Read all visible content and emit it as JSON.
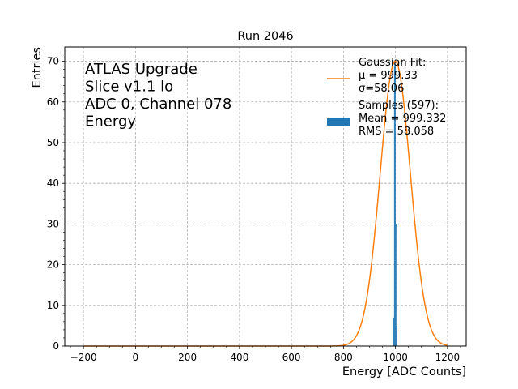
{
  "chart_data": {
    "type": "bar",
    "title": "Run 2046",
    "xlabel": "Energy [ADC Counts]",
    "ylabel": "Entries",
    "xlim": [
      -272,
      1272
    ],
    "ylim": [
      0,
      73.5
    ],
    "xticks": [
      -200,
      0,
      200,
      400,
      600,
      800,
      1000,
      1200
    ],
    "xtick_labels": [
      "−200",
      "0",
      "200",
      "400",
      "600",
      "800",
      "1000",
      "1200"
    ],
    "yticks": [
      0,
      10,
      20,
      30,
      40,
      50,
      60,
      70
    ],
    "ytick_labels": [
      "0",
      "10",
      "20",
      "30",
      "40",
      "50",
      "60",
      "70"
    ],
    "x_minor_step": 50,
    "y_minor_step": 2,
    "grid": true,
    "annotation": [
      "ATLAS Upgrade",
      "Slice v1.1 lo",
      "ADC 0, Channel 078",
      "Energy"
    ],
    "histogram": {
      "name": "Samples (597)",
      "color": "#1f77b4",
      "bin_width": 3,
      "bins": [
        {
          "x": 993,
          "count": 7
        },
        {
          "x": 996,
          "count": 69
        },
        {
          "x": 999,
          "count": 69
        },
        {
          "x": 1002,
          "count": 30
        },
        {
          "x": 1005,
          "count": 5
        }
      ]
    },
    "fit": {
      "name": "Gaussian Fit",
      "color": "#ff7f0e",
      "mu": 999.33,
      "sigma": 58.06,
      "amplitude": 70,
      "x_range": [
        -200,
        1200
      ]
    },
    "legend": {
      "placement": "top-right",
      "entries": [
        {
          "type": "line",
          "color": "#ff7f0e",
          "lines": [
            "Gaussian Fit:",
            " μ = 999.33",
            " σ=58.06"
          ]
        },
        {
          "type": "patch",
          "color": "#1f77b4",
          "lines": [
            "Samples (597):",
            " Mean = 999.332",
            " RMS = 58.058"
          ]
        }
      ]
    }
  }
}
